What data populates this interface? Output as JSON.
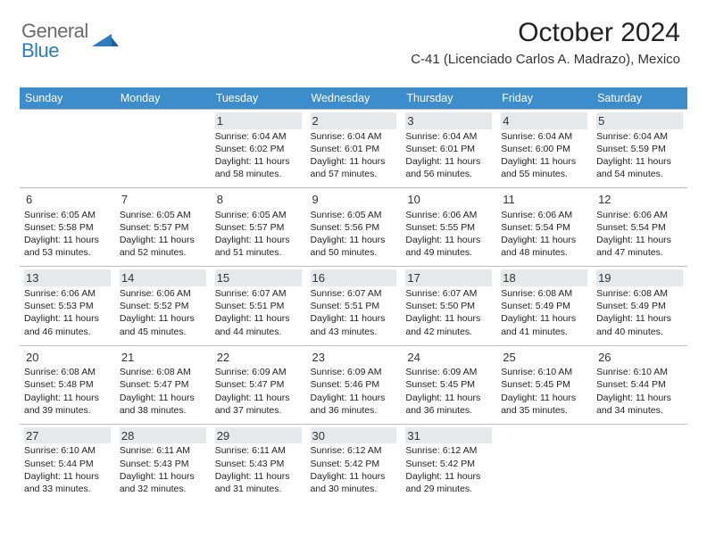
{
  "brand": {
    "general": "General",
    "blue": "Blue"
  },
  "header": {
    "month_title": "October 2024",
    "location": "C-41 (Licenciado Carlos A. Madrazo), Mexico"
  },
  "colors": {
    "header_bg": "#3d8ccc",
    "shade_bg": "#e6e9ec",
    "border": "#bbbbbb",
    "logo_gray": "#6b6b6b",
    "logo_blue": "#2f7bbf"
  },
  "weekdays": [
    "Sunday",
    "Monday",
    "Tuesday",
    "Wednesday",
    "Thursday",
    "Friday",
    "Saturday"
  ],
  "weeks": [
    [
      {
        "day": "",
        "shaded": true
      },
      {
        "day": "",
        "shaded": true
      },
      {
        "day": "1",
        "shaded": true,
        "sunrise": "Sunrise: 6:04 AM",
        "sunset": "Sunset: 6:02 PM",
        "dl1": "Daylight: 11 hours",
        "dl2": "and 58 minutes."
      },
      {
        "day": "2",
        "shaded": true,
        "sunrise": "Sunrise: 6:04 AM",
        "sunset": "Sunset: 6:01 PM",
        "dl1": "Daylight: 11 hours",
        "dl2": "and 57 minutes."
      },
      {
        "day": "3",
        "shaded": true,
        "sunrise": "Sunrise: 6:04 AM",
        "sunset": "Sunset: 6:01 PM",
        "dl1": "Daylight: 11 hours",
        "dl2": "and 56 minutes."
      },
      {
        "day": "4",
        "shaded": true,
        "sunrise": "Sunrise: 6:04 AM",
        "sunset": "Sunset: 6:00 PM",
        "dl1": "Daylight: 11 hours",
        "dl2": "and 55 minutes."
      },
      {
        "day": "5",
        "shaded": true,
        "sunrise": "Sunrise: 6:04 AM",
        "sunset": "Sunset: 5:59 PM",
        "dl1": "Daylight: 11 hours",
        "dl2": "and 54 minutes."
      }
    ],
    [
      {
        "day": "6",
        "sunrise": "Sunrise: 6:05 AM",
        "sunset": "Sunset: 5:58 PM",
        "dl1": "Daylight: 11 hours",
        "dl2": "and 53 minutes."
      },
      {
        "day": "7",
        "sunrise": "Sunrise: 6:05 AM",
        "sunset": "Sunset: 5:57 PM",
        "dl1": "Daylight: 11 hours",
        "dl2": "and 52 minutes."
      },
      {
        "day": "8",
        "sunrise": "Sunrise: 6:05 AM",
        "sunset": "Sunset: 5:57 PM",
        "dl1": "Daylight: 11 hours",
        "dl2": "and 51 minutes."
      },
      {
        "day": "9",
        "sunrise": "Sunrise: 6:05 AM",
        "sunset": "Sunset: 5:56 PM",
        "dl1": "Daylight: 11 hours",
        "dl2": "and 50 minutes."
      },
      {
        "day": "10",
        "sunrise": "Sunrise: 6:06 AM",
        "sunset": "Sunset: 5:55 PM",
        "dl1": "Daylight: 11 hours",
        "dl2": "and 49 minutes."
      },
      {
        "day": "11",
        "sunrise": "Sunrise: 6:06 AM",
        "sunset": "Sunset: 5:54 PM",
        "dl1": "Daylight: 11 hours",
        "dl2": "and 48 minutes."
      },
      {
        "day": "12",
        "sunrise": "Sunrise: 6:06 AM",
        "sunset": "Sunset: 5:54 PM",
        "dl1": "Daylight: 11 hours",
        "dl2": "and 47 minutes."
      }
    ],
    [
      {
        "day": "13",
        "shaded": true,
        "sunrise": "Sunrise: 6:06 AM",
        "sunset": "Sunset: 5:53 PM",
        "dl1": "Daylight: 11 hours",
        "dl2": "and 46 minutes."
      },
      {
        "day": "14",
        "shaded": true,
        "sunrise": "Sunrise: 6:06 AM",
        "sunset": "Sunset: 5:52 PM",
        "dl1": "Daylight: 11 hours",
        "dl2": "and 45 minutes."
      },
      {
        "day": "15",
        "shaded": true,
        "sunrise": "Sunrise: 6:07 AM",
        "sunset": "Sunset: 5:51 PM",
        "dl1": "Daylight: 11 hours",
        "dl2": "and 44 minutes."
      },
      {
        "day": "16",
        "shaded": true,
        "sunrise": "Sunrise: 6:07 AM",
        "sunset": "Sunset: 5:51 PM",
        "dl1": "Daylight: 11 hours",
        "dl2": "and 43 minutes."
      },
      {
        "day": "17",
        "shaded": true,
        "sunrise": "Sunrise: 6:07 AM",
        "sunset": "Sunset: 5:50 PM",
        "dl1": "Daylight: 11 hours",
        "dl2": "and 42 minutes."
      },
      {
        "day": "18",
        "shaded": true,
        "sunrise": "Sunrise: 6:08 AM",
        "sunset": "Sunset: 5:49 PM",
        "dl1": "Daylight: 11 hours",
        "dl2": "and 41 minutes."
      },
      {
        "day": "19",
        "shaded": true,
        "sunrise": "Sunrise: 6:08 AM",
        "sunset": "Sunset: 5:49 PM",
        "dl1": "Daylight: 11 hours",
        "dl2": "and 40 minutes."
      }
    ],
    [
      {
        "day": "20",
        "sunrise": "Sunrise: 6:08 AM",
        "sunset": "Sunset: 5:48 PM",
        "dl1": "Daylight: 11 hours",
        "dl2": "and 39 minutes."
      },
      {
        "day": "21",
        "sunrise": "Sunrise: 6:08 AM",
        "sunset": "Sunset: 5:47 PM",
        "dl1": "Daylight: 11 hours",
        "dl2": "and 38 minutes."
      },
      {
        "day": "22",
        "sunrise": "Sunrise: 6:09 AM",
        "sunset": "Sunset: 5:47 PM",
        "dl1": "Daylight: 11 hours",
        "dl2": "and 37 minutes."
      },
      {
        "day": "23",
        "sunrise": "Sunrise: 6:09 AM",
        "sunset": "Sunset: 5:46 PM",
        "dl1": "Daylight: 11 hours",
        "dl2": "and 36 minutes."
      },
      {
        "day": "24",
        "sunrise": "Sunrise: 6:09 AM",
        "sunset": "Sunset: 5:45 PM",
        "dl1": "Daylight: 11 hours",
        "dl2": "and 36 minutes."
      },
      {
        "day": "25",
        "sunrise": "Sunrise: 6:10 AM",
        "sunset": "Sunset: 5:45 PM",
        "dl1": "Daylight: 11 hours",
        "dl2": "and 35 minutes."
      },
      {
        "day": "26",
        "sunrise": "Sunrise: 6:10 AM",
        "sunset": "Sunset: 5:44 PM",
        "dl1": "Daylight: 11 hours",
        "dl2": "and 34 minutes."
      }
    ],
    [
      {
        "day": "27",
        "shaded": true,
        "sunrise": "Sunrise: 6:10 AM",
        "sunset": "Sunset: 5:44 PM",
        "dl1": "Daylight: 11 hours",
        "dl2": "and 33 minutes."
      },
      {
        "day": "28",
        "shaded": true,
        "sunrise": "Sunrise: 6:11 AM",
        "sunset": "Sunset: 5:43 PM",
        "dl1": "Daylight: 11 hours",
        "dl2": "and 32 minutes."
      },
      {
        "day": "29",
        "shaded": true,
        "sunrise": "Sunrise: 6:11 AM",
        "sunset": "Sunset: 5:43 PM",
        "dl1": "Daylight: 11 hours",
        "dl2": "and 31 minutes."
      },
      {
        "day": "30",
        "shaded": true,
        "sunrise": "Sunrise: 6:12 AM",
        "sunset": "Sunset: 5:42 PM",
        "dl1": "Daylight: 11 hours",
        "dl2": "and 30 minutes."
      },
      {
        "day": "31",
        "shaded": true,
        "sunrise": "Sunrise: 6:12 AM",
        "sunset": "Sunset: 5:42 PM",
        "dl1": "Daylight: 11 hours",
        "dl2": "and 29 minutes."
      },
      {
        "day": "",
        "shaded": true
      },
      {
        "day": "",
        "shaded": true
      }
    ]
  ]
}
